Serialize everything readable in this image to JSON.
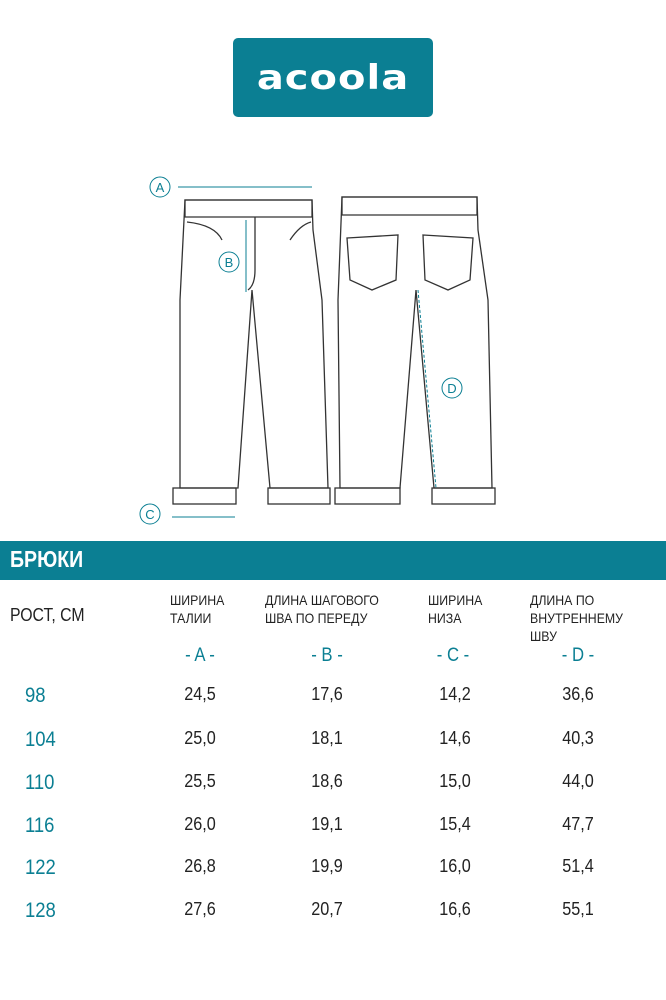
{
  "brand": {
    "logo_text": "acoola",
    "color": "#0b7f93"
  },
  "diagram": {
    "labels": [
      "A",
      "B",
      "C",
      "D"
    ]
  },
  "section_title": "БРЮКИ",
  "table": {
    "row_header": "РОСТ, СМ",
    "columns": [
      {
        "line1": "ШИРИНА",
        "line2": "ТАЛИИ",
        "letter": "- A -"
      },
      {
        "line1": "ДЛИНА ШАГОВОГО",
        "line2": "ШВА ПО ПЕРЕДУ",
        "letter": "- B -"
      },
      {
        "line1": "ШИРИНА",
        "line2": "НИЗА",
        "letter": "- C -"
      },
      {
        "line1": "ДЛИНА ПО",
        "line2": "ВНУТРЕННЕМУ ШВУ",
        "letter": "- D -"
      }
    ],
    "rows": [
      {
        "height": "98",
        "values": [
          "24,5",
          "17,6",
          "14,2",
          "36,6"
        ]
      },
      {
        "height": "104",
        "values": [
          "25,0",
          "18,1",
          "14,6",
          "40,3"
        ]
      },
      {
        "height": "110",
        "values": [
          "25,5",
          "18,6",
          "15,0",
          "44,0"
        ]
      },
      {
        "height": "116",
        "values": [
          "26,0",
          "19,1",
          "15,4",
          "47,7"
        ]
      },
      {
        "height": "122",
        "values": [
          "26,8",
          "19,9",
          "16,0",
          "51,4"
        ]
      },
      {
        "height": "128",
        "values": [
          "27,6",
          "20,7",
          "16,6",
          "55,1"
        ]
      }
    ]
  }
}
